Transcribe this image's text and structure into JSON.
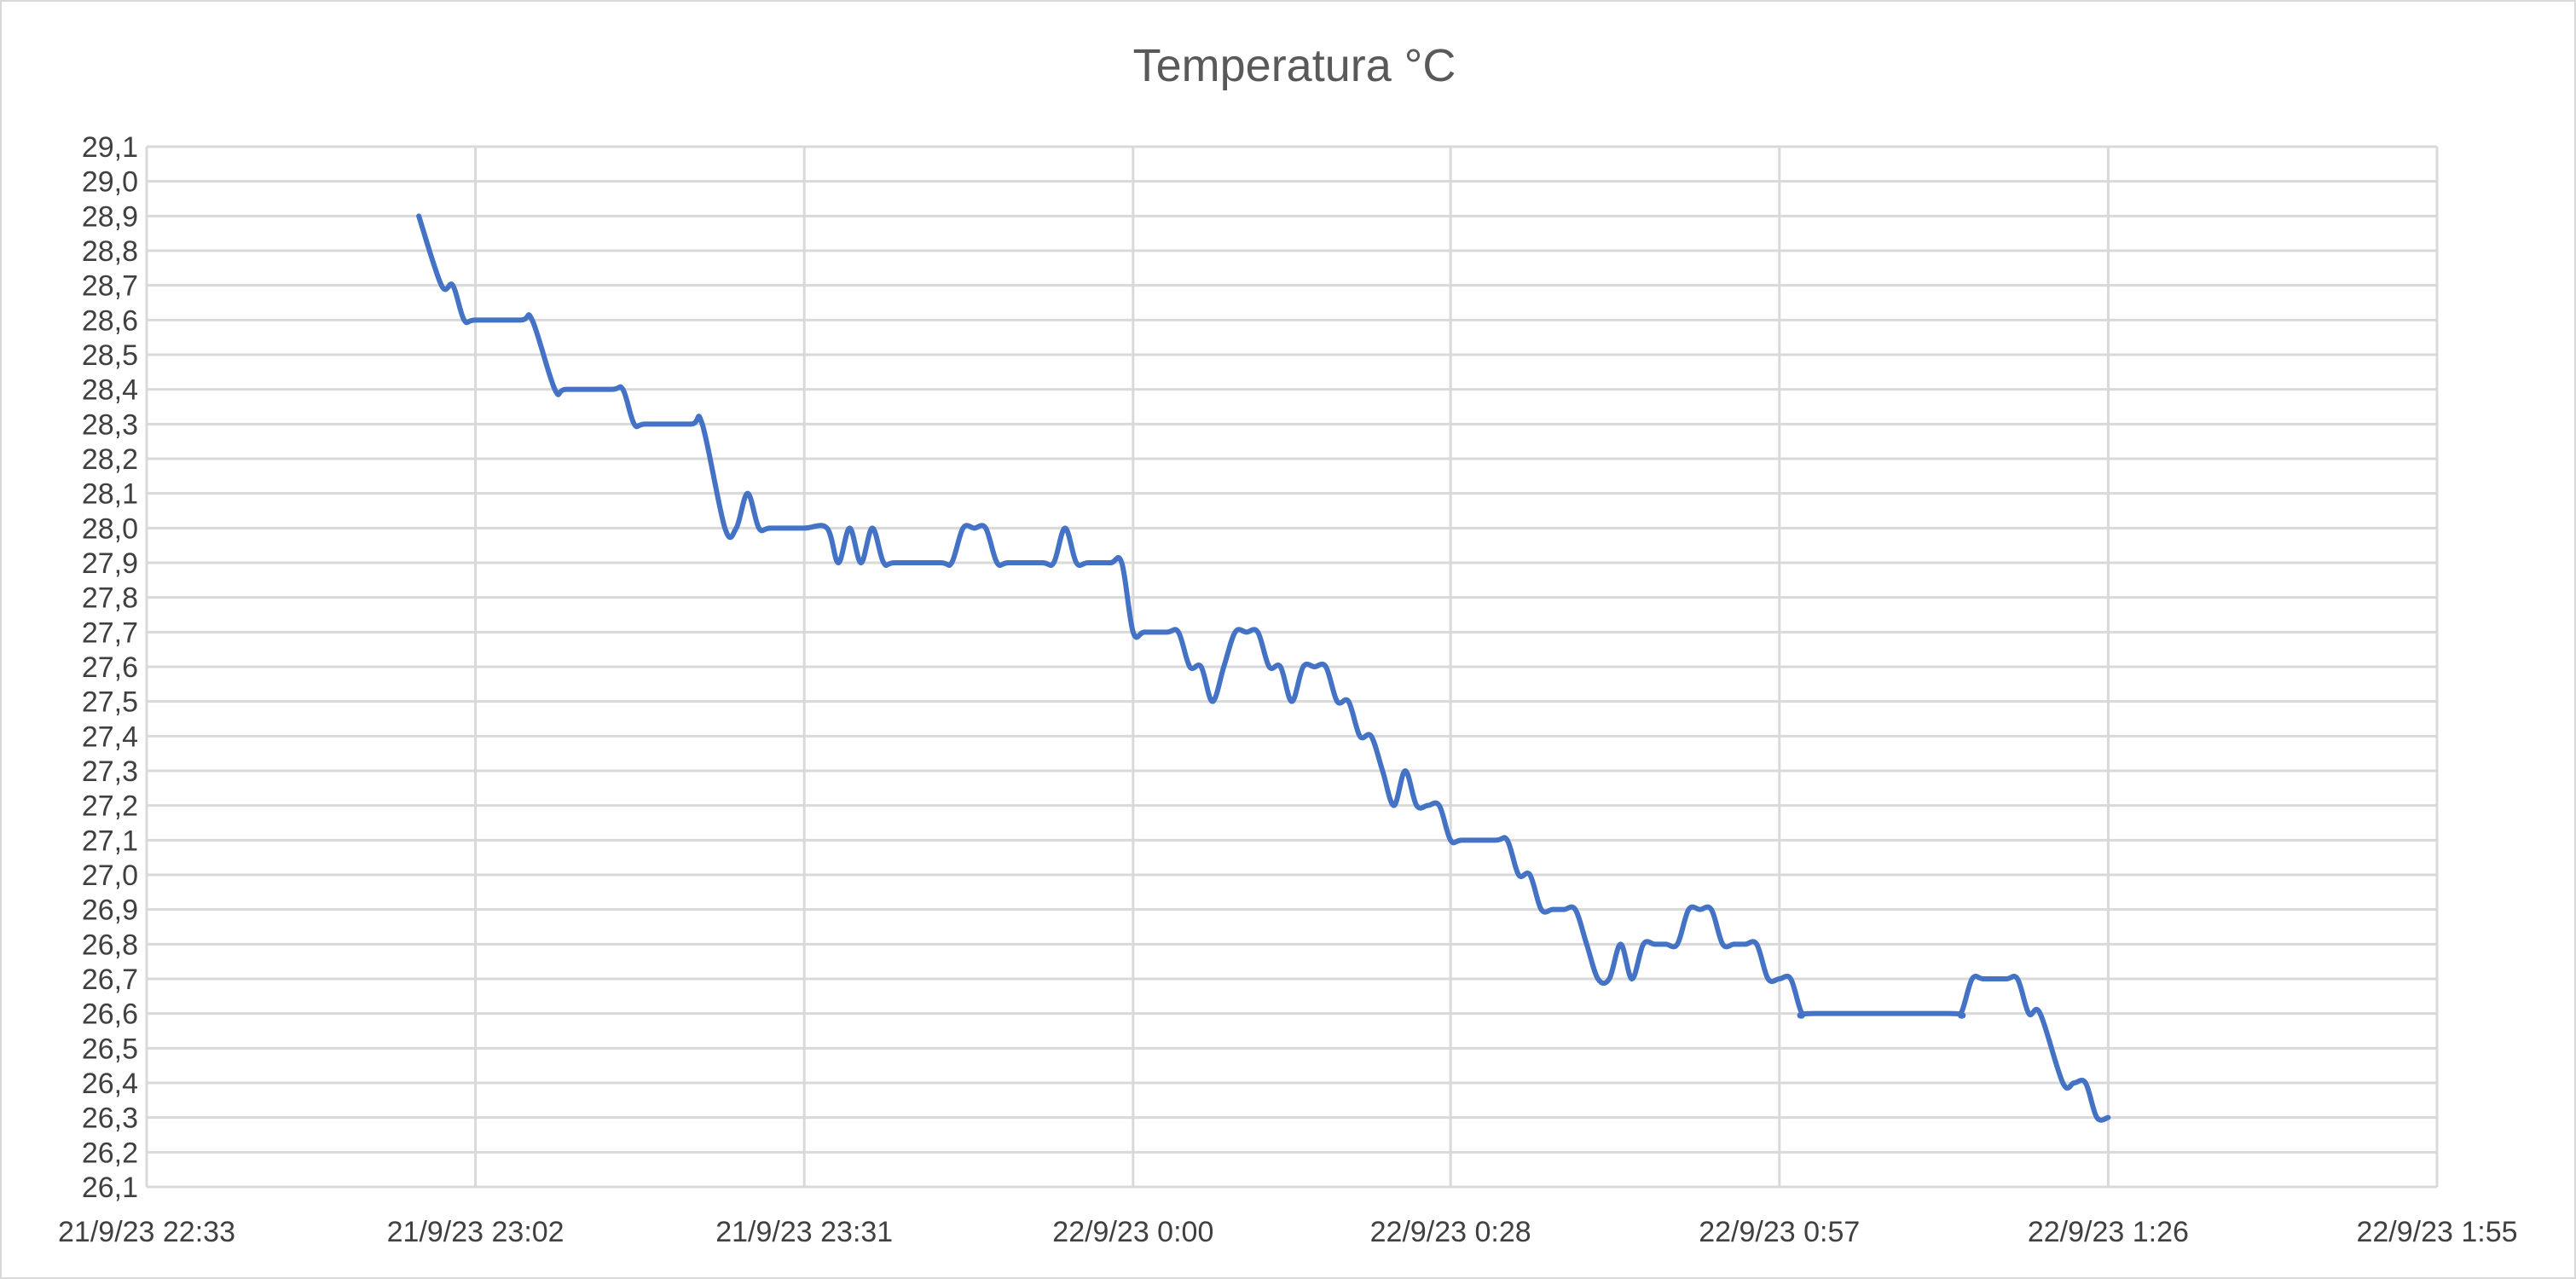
{
  "chart_data": {
    "type": "line",
    "title": "Temperatura °C",
    "xlabel": "",
    "ylabel": "",
    "grid": true,
    "legend": "none",
    "colors": {
      "series": "#4472c4",
      "grid": "#d9d9d9",
      "text": "#404040",
      "title": "#595959"
    },
    "xlim": [
      "2023-09-21T22:33",
      "2023-09-22T01:55"
    ],
    "ylim": [
      26.1,
      29.1
    ],
    "x_ticks": [
      {
        "t": "2023-09-21T22:33",
        "label": "21/9/23 22:33"
      },
      {
        "t": "2023-09-21T23:02",
        "label": "21/9/23 23:02"
      },
      {
        "t": "2023-09-21T23:31",
        "label": "21/9/23 23:31"
      },
      {
        "t": "2023-09-22T00:00",
        "label": "22/9/23 0:00"
      },
      {
        "t": "2023-09-22T00:28",
        "label": "22/9/23 0:28"
      },
      {
        "t": "2023-09-22T00:57",
        "label": "22/9/23 0:57"
      },
      {
        "t": "2023-09-22T01:26",
        "label": "22/9/23 1:26"
      },
      {
        "t": "2023-09-22T01:55",
        "label": "22/9/23 1:55"
      }
    ],
    "y_ticks": [
      "26,1",
      "26,2",
      "26,3",
      "26,4",
      "26,5",
      "26,6",
      "26,7",
      "26,8",
      "26,9",
      "27,0",
      "27,1",
      "27,2",
      "27,3",
      "27,4",
      "27,5",
      "27,6",
      "27,7",
      "27,8",
      "27,9",
      "28,0",
      "28,1",
      "28,2",
      "28,3",
      "28,4",
      "28,5",
      "28,6",
      "28,7",
      "28,8",
      "28,9",
      "29,0",
      "29,1"
    ],
    "series": [
      {
        "points": [
          [
            "2023-09-21T22:57",
            28.9
          ],
          [
            "2023-09-21T22:59",
            28.7
          ],
          [
            "2023-09-21T23:00",
            28.7
          ],
          [
            "2023-09-21T23:01",
            28.6
          ],
          [
            "2023-09-21T23:02",
            28.6
          ],
          [
            "2023-09-21T23:06",
            28.6
          ],
          [
            "2023-09-21T23:07",
            28.6
          ],
          [
            "2023-09-21T23:09",
            28.4
          ],
          [
            "2023-09-21T23:10",
            28.4
          ],
          [
            "2023-09-21T23:14",
            28.4
          ],
          [
            "2023-09-21T23:15",
            28.4
          ],
          [
            "2023-09-21T23:16",
            28.3
          ],
          [
            "2023-09-21T23:17",
            28.3
          ],
          [
            "2023-09-21T23:21",
            28.3
          ],
          [
            "2023-09-21T23:22",
            28.3
          ],
          [
            "2023-09-21T23:24",
            28.0
          ],
          [
            "2023-09-21T23:25",
            28.0
          ],
          [
            "2023-09-21T23:26",
            28.1
          ],
          [
            "2023-09-21T23:27",
            28.0
          ],
          [
            "2023-09-21T23:28",
            28.0
          ],
          [
            "2023-09-21T23:31",
            28.0
          ],
          [
            "2023-09-21T23:33",
            28.0
          ],
          [
            "2023-09-21T23:34",
            27.9
          ],
          [
            "2023-09-21T23:35",
            28.0
          ],
          [
            "2023-09-21T23:36",
            27.9
          ],
          [
            "2023-09-21T23:37",
            28.0
          ],
          [
            "2023-09-21T23:38",
            27.9
          ],
          [
            "2023-09-21T23:39",
            27.9
          ],
          [
            "2023-09-21T23:43",
            27.9
          ],
          [
            "2023-09-21T23:44",
            27.9
          ],
          [
            "2023-09-21T23:45",
            28.0
          ],
          [
            "2023-09-21T23:46",
            28.0
          ],
          [
            "2023-09-21T23:47",
            28.0
          ],
          [
            "2023-09-21T23:48",
            27.9
          ],
          [
            "2023-09-21T23:49",
            27.9
          ],
          [
            "2023-09-21T23:52",
            27.9
          ],
          [
            "2023-09-21T23:53",
            27.9
          ],
          [
            "2023-09-21T23:54",
            28.0
          ],
          [
            "2023-09-21T23:55",
            27.9
          ],
          [
            "2023-09-21T23:56",
            27.9
          ],
          [
            "2023-09-21T23:58",
            27.9
          ],
          [
            "2023-09-21T23:59",
            27.9
          ],
          [
            "2023-09-22T00:00",
            27.7
          ],
          [
            "2023-09-22T00:01",
            27.7
          ],
          [
            "2023-09-22T00:03",
            27.7
          ],
          [
            "2023-09-22T00:04",
            27.7
          ],
          [
            "2023-09-22T00:05",
            27.6
          ],
          [
            "2023-09-22T00:06",
            27.6
          ],
          [
            "2023-09-22T00:07",
            27.5
          ],
          [
            "2023-09-22T00:08",
            27.6
          ],
          [
            "2023-09-22T00:09",
            27.7
          ],
          [
            "2023-09-22T00:10",
            27.7
          ],
          [
            "2023-09-22T00:11",
            27.7
          ],
          [
            "2023-09-22T00:12",
            27.6
          ],
          [
            "2023-09-22T00:13",
            27.6
          ],
          [
            "2023-09-22T00:14",
            27.5
          ],
          [
            "2023-09-22T00:15",
            27.6
          ],
          [
            "2023-09-22T00:16",
            27.6
          ],
          [
            "2023-09-22T00:17",
            27.6
          ],
          [
            "2023-09-22T00:18",
            27.5
          ],
          [
            "2023-09-22T00:19",
            27.5
          ],
          [
            "2023-09-22T00:20",
            27.4
          ],
          [
            "2023-09-22T00:21",
            27.4
          ],
          [
            "2023-09-22T00:22",
            27.3
          ],
          [
            "2023-09-22T00:23",
            27.2
          ],
          [
            "2023-09-22T00:24",
            27.3
          ],
          [
            "2023-09-22T00:25",
            27.2
          ],
          [
            "2023-09-22T00:26",
            27.2
          ],
          [
            "2023-09-22T00:27",
            27.2
          ],
          [
            "2023-09-22T00:28",
            27.1
          ],
          [
            "2023-09-22T00:29",
            27.1
          ],
          [
            "2023-09-22T00:32",
            27.1
          ],
          [
            "2023-09-22T00:33",
            27.1
          ],
          [
            "2023-09-22T00:34",
            27.0
          ],
          [
            "2023-09-22T00:35",
            27.0
          ],
          [
            "2023-09-22T00:36",
            26.9
          ],
          [
            "2023-09-22T00:37",
            26.9
          ],
          [
            "2023-09-22T00:38",
            26.9
          ],
          [
            "2023-09-22T00:39",
            26.9
          ],
          [
            "2023-09-22T00:40",
            26.8
          ],
          [
            "2023-09-22T00:41",
            26.7
          ],
          [
            "2023-09-22T00:42",
            26.7
          ],
          [
            "2023-09-22T00:43",
            26.8
          ],
          [
            "2023-09-22T00:44",
            26.7
          ],
          [
            "2023-09-22T00:45",
            26.8
          ],
          [
            "2023-09-22T00:46",
            26.8
          ],
          [
            "2023-09-22T00:47",
            26.8
          ],
          [
            "2023-09-22T00:48",
            26.8
          ],
          [
            "2023-09-22T00:49",
            26.9
          ],
          [
            "2023-09-22T00:50",
            26.9
          ],
          [
            "2023-09-22T00:51",
            26.9
          ],
          [
            "2023-09-22T00:52",
            26.8
          ],
          [
            "2023-09-22T00:53",
            26.8
          ],
          [
            "2023-09-22T00:54",
            26.8
          ],
          [
            "2023-09-22T00:55",
            26.8
          ],
          [
            "2023-09-22T00:56",
            26.7
          ],
          [
            "2023-09-22T00:57",
            26.7
          ],
          [
            "2023-09-22T00:58",
            26.7
          ],
          [
            "2023-09-22T00:59",
            26.6
          ],
          [
            "2023-09-22T01:00",
            26.6
          ],
          [
            "2023-09-22T01:12",
            26.6
          ],
          [
            "2023-09-22T01:13",
            26.6
          ],
          [
            "2023-09-22T01:14",
            26.7
          ],
          [
            "2023-09-22T01:15",
            26.7
          ],
          [
            "2023-09-22T01:17",
            26.7
          ],
          [
            "2023-09-22T01:18",
            26.7
          ],
          [
            "2023-09-22T01:19",
            26.6
          ],
          [
            "2023-09-22T01:20",
            26.6
          ],
          [
            "2023-09-22T01:22",
            26.4
          ],
          [
            "2023-09-22T01:23",
            26.4
          ],
          [
            "2023-09-22T01:24",
            26.4
          ],
          [
            "2023-09-22T01:25",
            26.3
          ],
          [
            "2023-09-22T01:26",
            26.3
          ]
        ]
      }
    ]
  }
}
